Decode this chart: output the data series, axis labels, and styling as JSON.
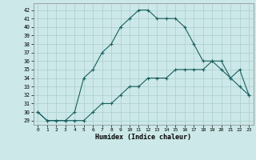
{
  "xlabel": "Humidex (Indice chaleur)",
  "bg_color": "#cce8e8",
  "grid_color": "#aacece",
  "line_color": "#1a6060",
  "line1_x": [
    0,
    1,
    2,
    3,
    4,
    5,
    6,
    7,
    8,
    9,
    10,
    11,
    12,
    13,
    14,
    15,
    16,
    17,
    18,
    19,
    20,
    21,
    22,
    23
  ],
  "line1_y": [
    30,
    29,
    29,
    29,
    29,
    29,
    30,
    31,
    31,
    32,
    33,
    33,
    34,
    34,
    34,
    35,
    35,
    35,
    35,
    36,
    35,
    34,
    33,
    32
  ],
  "line2_x": [
    0,
    1,
    2,
    3,
    4,
    5,
    6,
    7,
    8,
    9,
    10,
    11,
    12,
    13,
    14,
    15,
    16,
    17,
    18,
    19,
    20,
    21,
    22,
    23
  ],
  "line2_y": [
    30,
    29,
    29,
    29,
    30,
    34,
    35,
    37,
    38,
    40,
    41,
    42,
    42,
    41,
    41,
    41,
    40,
    38,
    36,
    36,
    36,
    34,
    35,
    32
  ],
  "ylim": [
    28.5,
    42.8
  ],
  "xlim": [
    -0.5,
    23.5
  ],
  "yticks": [
    29,
    30,
    31,
    32,
    33,
    34,
    35,
    36,
    37,
    38,
    39,
    40,
    41,
    42
  ],
  "xticks": [
    0,
    1,
    2,
    3,
    4,
    5,
    6,
    7,
    8,
    9,
    10,
    11,
    12,
    13,
    14,
    15,
    16,
    17,
    18,
    19,
    20,
    21,
    22,
    23
  ],
  "xtick_labels": [
    "0",
    "1",
    "2",
    "3",
    "4",
    "5",
    "6",
    "7",
    "8",
    "9",
    "10",
    "11",
    "12",
    "13",
    "14",
    "15",
    "16",
    "17",
    "18",
    "19",
    "20",
    "21",
    "22",
    "23"
  ]
}
